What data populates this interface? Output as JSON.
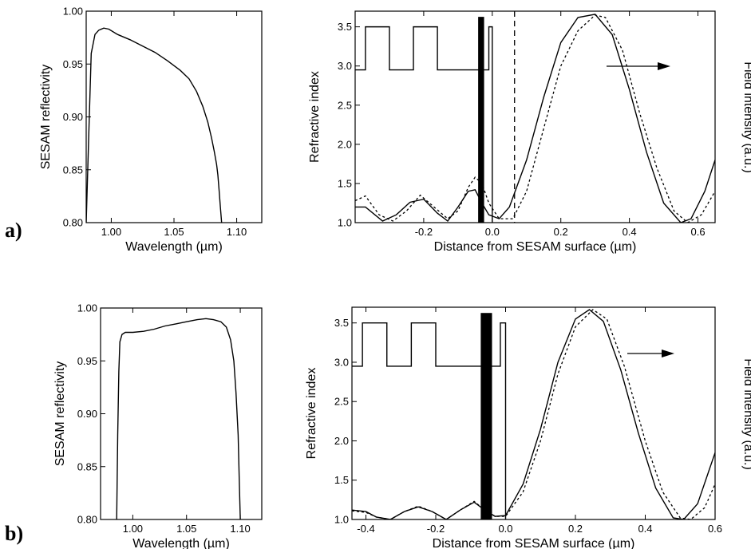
{
  "panel_labels": [
    "a)",
    "b)"
  ],
  "chart_data": [
    {
      "type": "line",
      "id": "a-reflectivity",
      "xlabel": "Wavelength (µm)",
      "ylabel": "SESAM reflectivity",
      "xlim": [
        0.98,
        1.12
      ],
      "ylim": [
        0.8,
        1.0
      ],
      "xticks": [
        1.0,
        1.05,
        1.1
      ],
      "xtick_labels": [
        "1.00",
        "1.05",
        "1.10"
      ],
      "yticks": [
        0.8,
        0.85,
        0.9,
        0.95,
        1.0
      ],
      "ytick_labels": [
        "0.80",
        "0.85",
        "0.90",
        "0.95",
        "1.00"
      ],
      "series": [
        {
          "style": "solid",
          "x": [
            0.98,
            0.982,
            0.984,
            0.987,
            0.99,
            0.994,
            0.998,
            1.005,
            1.015,
            1.025,
            1.035,
            1.045,
            1.055,
            1.062,
            1.068,
            1.073,
            1.077,
            1.08,
            1.082,
            1.084,
            1.085,
            1.086,
            1.087,
            1.088
          ],
          "y": [
            0.8,
            0.88,
            0.96,
            0.978,
            0.982,
            0.984,
            0.983,
            0.978,
            0.973,
            0.967,
            0.961,
            0.953,
            0.944,
            0.936,
            0.924,
            0.91,
            0.895,
            0.88,
            0.868,
            0.855,
            0.845,
            0.83,
            0.815,
            0.8
          ]
        }
      ]
    },
    {
      "type": "line",
      "id": "a-field",
      "xlabel": "Distance from SESAM surface (µm)",
      "ylabel": "Refractive index",
      "ylabel_right": "Field intensity (a.u.)",
      "xlim": [
        -0.4,
        0.65
      ],
      "ylim": [
        1.0,
        3.7
      ],
      "xticks": [
        -0.2,
        0.0,
        0.2,
        0.4,
        0.6
      ],
      "xtick_labels": [
        "-0.2",
        "0.0",
        "0.2",
        "0.4",
        "0.6"
      ],
      "yticks": [
        1.0,
        1.5,
        2.0,
        2.5,
        3.0,
        3.5
      ],
      "ytick_labels": [
        "1.0",
        "1.5",
        "2.0",
        "2.5",
        "3.0",
        "3.5"
      ],
      "index_profile": {
        "layer_boundaries": [
          -0.4,
          -0.37,
          -0.3,
          -0.23,
          -0.16,
          -0.01,
          0.0
        ],
        "n_high": 3.5,
        "n_low": 2.95,
        "n_air": 1.0
      },
      "absorber": [
        -0.04,
        -0.025
      ],
      "marker_x": 0.065,
      "series": [
        {
          "style": "solid",
          "x": [
            -0.4,
            -0.37,
            -0.32,
            -0.28,
            -0.24,
            -0.2,
            -0.16,
            -0.13,
            -0.1,
            -0.07,
            -0.05,
            -0.03,
            -0.01,
            0.02,
            0.05,
            0.1,
            0.15,
            0.2,
            0.25,
            0.3,
            0.35,
            0.4,
            0.45,
            0.5,
            0.55,
            0.58,
            0.62,
            0.65
          ],
          "y": [
            1.2,
            1.2,
            1.02,
            1.1,
            1.26,
            1.3,
            1.12,
            1.02,
            1.2,
            1.4,
            1.42,
            1.25,
            1.1,
            1.05,
            1.2,
            1.8,
            2.6,
            3.3,
            3.62,
            3.66,
            3.4,
            2.7,
            1.9,
            1.25,
            1.0,
            1.05,
            1.4,
            1.8
          ]
        },
        {
          "style": "dashed",
          "x": [
            -0.4,
            -0.37,
            -0.33,
            -0.29,
            -0.25,
            -0.21,
            -0.17,
            -0.13,
            -0.1,
            -0.07,
            -0.05,
            -0.03,
            -0.01,
            0.02,
            0.06,
            0.1,
            0.15,
            0.2,
            0.25,
            0.3,
            0.33,
            0.38,
            0.43,
            0.48,
            0.53,
            0.57,
            0.61,
            0.65
          ],
          "y": [
            1.28,
            1.34,
            1.1,
            1.02,
            1.15,
            1.35,
            1.2,
            1.05,
            1.15,
            1.45,
            1.58,
            1.5,
            1.25,
            1.05,
            1.05,
            1.4,
            2.2,
            3.0,
            3.45,
            3.65,
            3.62,
            3.2,
            2.4,
            1.7,
            1.15,
            1.0,
            1.1,
            1.4
          ]
        }
      ]
    },
    {
      "type": "line",
      "id": "b-reflectivity",
      "xlabel": "Wavelength (µm)",
      "ylabel": "SESAM reflectivity",
      "xlim": [
        0.97,
        1.12
      ],
      "ylim": [
        0.8,
        1.0
      ],
      "xticks": [
        1.0,
        1.05,
        1.1
      ],
      "xtick_labels": [
        "1.00",
        "1.05",
        "1.10"
      ],
      "yticks": [
        0.8,
        0.85,
        0.9,
        0.95,
        1.0
      ],
      "ytick_labels": [
        "0.80",
        "0.85",
        "0.90",
        "0.95",
        "1.00"
      ],
      "series": [
        {
          "style": "solid",
          "x": [
            0.985,
            0.986,
            0.987,
            0.988,
            0.99,
            0.993,
            1.0,
            1.01,
            1.02,
            1.03,
            1.04,
            1.05,
            1.06,
            1.068,
            1.075,
            1.082,
            1.087,
            1.091,
            1.094,
            1.096,
            1.098,
            1.099,
            1.1
          ],
          "y": [
            0.8,
            0.88,
            0.94,
            0.968,
            0.975,
            0.977,
            0.977,
            0.978,
            0.98,
            0.983,
            0.985,
            0.987,
            0.989,
            0.99,
            0.989,
            0.987,
            0.982,
            0.97,
            0.95,
            0.92,
            0.88,
            0.84,
            0.8
          ]
        }
      ]
    },
    {
      "type": "line",
      "id": "b-field",
      "xlabel": "Distance from SESAM surface (µm)",
      "ylabel": "Refractive index",
      "ylabel_right": "Field intensity (a.u.)",
      "xlim": [
        -0.44,
        0.6
      ],
      "ylim": [
        1.0,
        3.7
      ],
      "xticks": [
        -0.4,
        -0.2,
        0.0,
        0.2,
        0.4,
        0.6
      ],
      "xtick_labels": [
        "-0.4",
        "-0.2",
        "0.0",
        "0.2",
        "0.4",
        "0.6"
      ],
      "yticks": [
        1.0,
        1.5,
        2.0,
        2.5,
        3.0,
        3.5
      ],
      "ytick_labels": [
        "1.0",
        "1.5",
        "2.0",
        "2.5",
        "3.0",
        "3.5"
      ],
      "index_profile": {
        "layer_boundaries": [
          -0.44,
          -0.41,
          -0.34,
          -0.27,
          -0.2,
          -0.015,
          0.0
        ],
        "n_high": 3.5,
        "n_low": 2.95,
        "n_air": 1.0
      },
      "absorber": [
        -0.07,
        -0.04
      ],
      "series": [
        {
          "style": "solid",
          "x": [
            -0.44,
            -0.4,
            -0.37,
            -0.33,
            -0.29,
            -0.25,
            -0.21,
            -0.17,
            -0.13,
            -0.09,
            -0.06,
            -0.03,
            0.0,
            0.05,
            0.1,
            0.15,
            0.2,
            0.24,
            0.28,
            0.33,
            0.38,
            0.43,
            0.48,
            0.51,
            0.55,
            0.6
          ],
          "y": [
            1.12,
            1.1,
            1.03,
            1.0,
            1.1,
            1.16,
            1.1,
            1.0,
            1.12,
            1.22,
            1.12,
            1.04,
            1.05,
            1.45,
            2.15,
            3.0,
            3.55,
            3.67,
            3.52,
            2.9,
            2.1,
            1.4,
            1.02,
            1.0,
            1.2,
            1.85
          ]
        },
        {
          "style": "dashed",
          "x": [
            -0.44,
            -0.4,
            -0.37,
            -0.33,
            -0.29,
            -0.25,
            -0.21,
            -0.17,
            -0.13,
            -0.09,
            -0.06,
            -0.03,
            0.0,
            0.05,
            0.1,
            0.15,
            0.2,
            0.25,
            0.29,
            0.34,
            0.4,
            0.45,
            0.5,
            0.53,
            0.57,
            0.6
          ],
          "y": [
            1.11,
            1.09,
            1.03,
            1.0,
            1.1,
            1.17,
            1.1,
            1.0,
            1.12,
            1.23,
            1.12,
            1.04,
            1.04,
            1.35,
            2.0,
            2.85,
            3.45,
            3.67,
            3.55,
            2.95,
            2.0,
            1.35,
            1.02,
            1.0,
            1.15,
            1.45
          ]
        }
      ]
    }
  ]
}
